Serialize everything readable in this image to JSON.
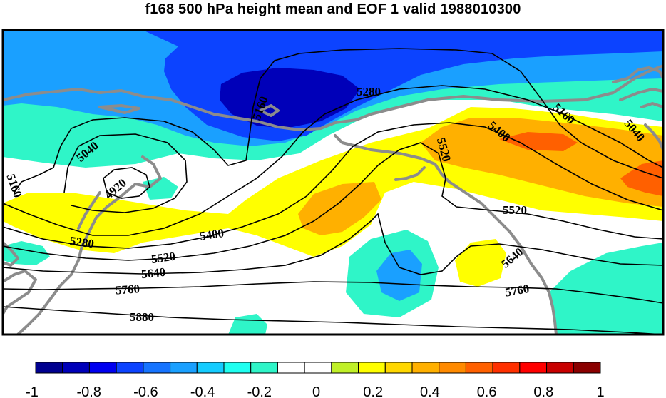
{
  "title": "f168 500 hPa height mean and EOF 1 valid 1988010300",
  "contour_labels": [
    "5040",
    "5160",
    "4920",
    "5160",
    "5280",
    "5280",
    "5400",
    "5520",
    "5640",
    "5760",
    "5880",
    "5400",
    "5520",
    "5160",
    "5040",
    "5520",
    "5640",
    "5760"
  ],
  "colorbar": {
    "colors": [
      "#00008f",
      "#0000b9",
      "#0000f0",
      "#0c43ff",
      "#1674ff",
      "#1aa0ff",
      "#14ccff",
      "#1ffff0",
      "#2ff5c8",
      "#ffffff",
      "#ffffff",
      "#c0f028",
      "#ffff00",
      "#ffd700",
      "#ffb000",
      "#ff8a00",
      "#ff6000",
      "#ff3000",
      "#ff0000",
      "#c80000",
      "#8a0000"
    ],
    "tick_labels": [
      "-1",
      "-0.8",
      "-0.6",
      "-0.4",
      "-0.2",
      "0",
      "0.2",
      "0.4",
      "0.6",
      "0.8",
      "1"
    ]
  },
  "palette": {
    "coast": "#8c8c8c",
    "contour": "#000000",
    "frame": "#000000"
  }
}
